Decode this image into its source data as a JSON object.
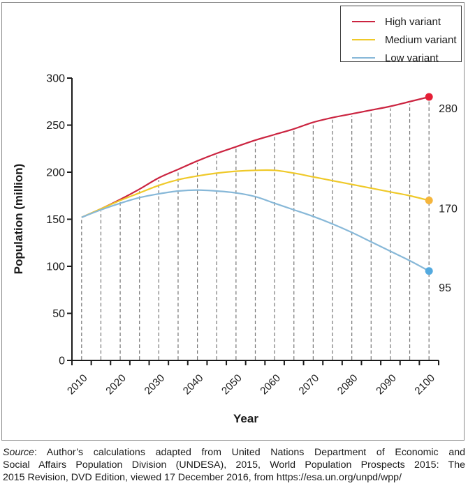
{
  "chart_data": {
    "type": "line",
    "title": "",
    "xlabel": "Year",
    "ylabel": "Population (million)",
    "x": [
      2010,
      2015,
      2020,
      2025,
      2030,
      2035,
      2040,
      2045,
      2050,
      2055,
      2060,
      2065,
      2070,
      2075,
      2080,
      2085,
      2090,
      2095,
      2100
    ],
    "x_tick_labels": [
      "2010",
      "2020",
      "2030",
      "2040",
      "2050",
      "2060",
      "2070",
      "2080",
      "2090",
      "2100"
    ],
    "ylim": [
      0,
      300
    ],
    "y_ticks": [
      0,
      50,
      100,
      150,
      200,
      250,
      300
    ],
    "grid": "vertical-dashed-every-5-years",
    "gridline_color": "#757575",
    "legend_position": "top-right",
    "axis_color": "#1a1a1a",
    "series": [
      {
        "name": "High variant",
        "color": "#cb2440",
        "marker_color": "#e51e36",
        "end_label": "280",
        "values": [
          152,
          161,
          171,
          182,
          194,
          203,
          212,
          220,
          227,
          234,
          240,
          246,
          253,
          258,
          262,
          266,
          270,
          275,
          280
        ]
      },
      {
        "name": "Medium variant",
        "color": "#efc929",
        "marker_color": "#f5b53c",
        "end_label": "170",
        "values": [
          152,
          161,
          170,
          178,
          186,
          192,
          196,
          199,
          201,
          202,
          202,
          199,
          195,
          191,
          187,
          183,
          179,
          175,
          170
        ]
      },
      {
        "name": "Low variant",
        "color": "#87b8d8",
        "marker_color": "#54aadf",
        "end_label": "95",
        "values": [
          152,
          160,
          167,
          173,
          177,
          180,
          181,
          180,
          178,
          174,
          167,
          160,
          153,
          145,
          136,
          126,
          116,
          106,
          95
        ]
      }
    ]
  },
  "footer": {
    "source_label": "Source",
    "line1_rest": ": Author’s calculations adapted from United Nations Department of Economic and",
    "line2": "Social Affairs Population Division (UNDESA), 2015, World Population Prospects 2015: The",
    "line3": "2015 Revision, DVD Edition, viewed 17 December 2016, from https://esa.un.org/unpd/wpp/"
  }
}
